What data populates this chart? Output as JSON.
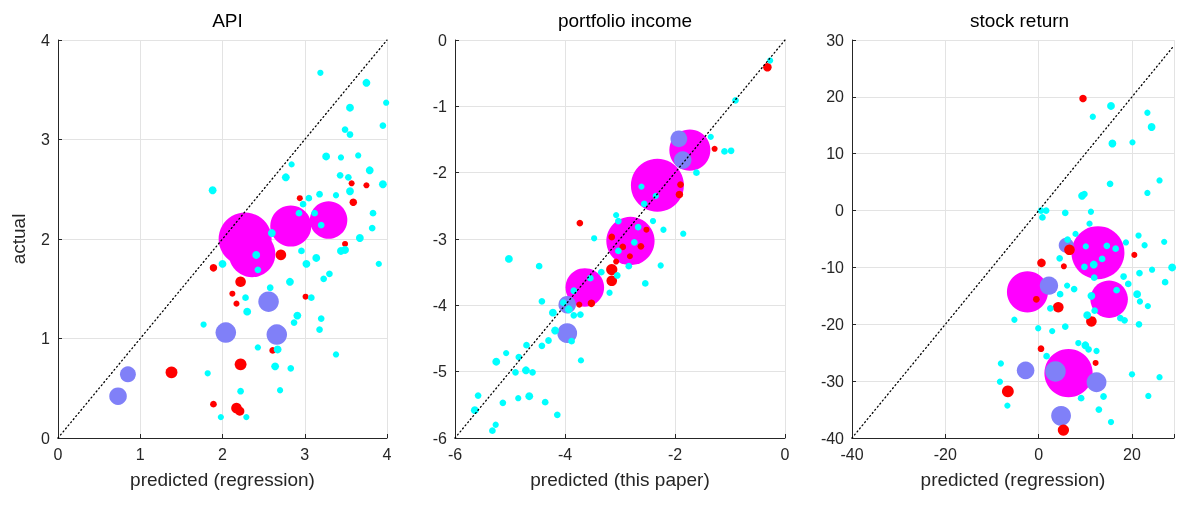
{
  "chart_data": [
    {
      "type": "bubble",
      "title": "API",
      "xlabel": "predicted (regression)",
      "ylabel": "actual",
      "xlim": [
        0,
        4
      ],
      "ylim": [
        0,
        4
      ],
      "xticks": [
        0,
        1,
        2,
        3,
        4
      ],
      "yticks": [
        0,
        1,
        2,
        3,
        4
      ],
      "grid": true,
      "series": [
        {
          "color": "#ff00ff",
          "x": [
            2.275,
            2.36,
            2.83,
            3.29
          ],
          "values": [
            2.0,
            1.85,
            2.13,
            2.19
          ],
          "sizes": [
            1,
            0.77,
            0.6,
            0.5
          ]
        },
        {
          "color": "#8080f8",
          "x": [
            2.56,
            2.04,
            2.66,
            0.85,
            0.73
          ],
          "values": [
            1.37,
            1.06,
            1.04,
            0.64,
            0.42
          ],
          "sizes": [
            0.15,
            0.15,
            0.15,
            0.09,
            0.11
          ]
        },
        {
          "color": "#ff0000",
          "x": [
            1.38,
            2.22,
            2.17,
            2.21,
            1.89,
            2.71,
            2.22,
            1.89,
            2.12,
            2.17,
            2.61,
            3.01,
            2.94,
            3.59,
            3.57,
            3.75,
            3.49
          ],
          "values": [
            0.66,
            0.74,
            0.3,
            0.27,
            0.34,
            1.84,
            1.57,
            1.71,
            1.45,
            1.35,
            0.88,
            1.42,
            2.41,
            2.37,
            2.56,
            2.54,
            1.95
          ],
          "sizes": [
            0.05,
            0.05,
            0.04,
            0.03,
            0.016,
            0.04,
            0.04,
            0.02,
            0.013,
            0.013,
            0.016,
            0.013,
            0.013,
            0.02,
            0.013,
            0.013,
            0.013
          ]
        },
        {
          "color": "#00ffff",
          "x": [
            3.19,
            3.75,
            3.55,
            3.99,
            3.95,
            3.49,
            3.55,
            3.26,
            3.44,
            3.65,
            2.84,
            3.79,
            2.77,
            3.43,
            3.53,
            3.95,
            1.88,
            3.18,
            3.55,
            3.05,
            2.98,
            3.38,
            2.93,
            3.12,
            3.83,
            3.82,
            3.2,
            2.6,
            3.67,
            2.96,
            3.44,
            3.49,
            2.41,
            2.0,
            3.14,
            3.02,
            2.43,
            3.9,
            3.23,
            3.3,
            2.82,
            2.58,
            2.28,
            3.08,
            2.3,
            2.91,
            2.87,
            3.2,
            3.18,
            1.77,
            2.43,
            2.67,
            3.38,
            2.64,
            2.83,
            1.82,
            2.22,
            2.7,
            1.98,
            2.29
          ],
          "values": [
            3.67,
            3.57,
            3.32,
            3.37,
            3.14,
            3.1,
            3.05,
            2.83,
            2.82,
            2.84,
            2.75,
            2.69,
            2.62,
            2.64,
            2.62,
            2.55,
            2.49,
            2.45,
            2.48,
            2.41,
            2.35,
            2.44,
            2.26,
            2.26,
            2.26,
            2.11,
            2.14,
            2.06,
            2.01,
            1.88,
            1.88,
            1.89,
            1.84,
            1.75,
            1.81,
            1.75,
            1.69,
            1.75,
            1.6,
            1.65,
            1.57,
            1.51,
            1.41,
            1.41,
            1.27,
            1.23,
            1.16,
            1.2,
            1.09,
            1.14,
            0.91,
            0.89,
            0.84,
            0.72,
            0.7,
            0.65,
            0.47,
            0.48,
            0.21,
            0.21
          ],
          "sizes": [
            0.014,
            0.022,
            0.022,
            0.014,
            0.016,
            0.016,
            0.016,
            0.022,
            0.014,
            0.014,
            0.014,
            0.022,
            0.022,
            0.016,
            0.016,
            0.022,
            0.022,
            0.016,
            0.022,
            0.016,
            0.016,
            0.014,
            0.016,
            0.016,
            0.016,
            0.016,
            0.016,
            0.022,
            0.022,
            0.016,
            0.022,
            0.022,
            0.022,
            0.022,
            0.022,
            0.022,
            0.016,
            0.014,
            0.016,
            0.016,
            0.022,
            0.016,
            0.016,
            0.016,
            0.022,
            0.022,
            0.016,
            0.016,
            0.016,
            0.014,
            0.014,
            0.022,
            0.014,
            0.022,
            0.016,
            0.014,
            0.016,
            0.014,
            0.014,
            0.014
          ]
        },
        {
          "type": "line",
          "color": "#000000",
          "line_style": "dotted",
          "marker": "none",
          "x": [
            0,
            4
          ],
          "values": [
            0,
            4
          ]
        }
      ]
    },
    {
      "type": "bubble",
      "title": "portfolio income",
      "xlabel": "predicted (this paper)",
      "xlim": [
        -6,
        0
      ],
      "ylim": [
        -6,
        0
      ],
      "xticks": [
        -6,
        -4,
        -2,
        0
      ],
      "yticks": [
        -6,
        -5,
        -4,
        -3,
        -2,
        -1,
        0
      ],
      "grid": true,
      "series": [
        {
          "color": "#ff00ff",
          "x": [
            -2.32,
            -1.73,
            -2.81,
            -3.64
          ],
          "values": [
            -2.19,
            -1.66,
            -3.03,
            -3.73
          ],
          "sizes": [
            1,
            0.6,
            0.83,
            0.53
          ]
        },
        {
          "color": "#8080f8",
          "x": [
            -1.93,
            -1.86,
            -3.96,
            -3.96
          ],
          "values": [
            -1.49,
            -1.81,
            -4.42,
            -3.99
          ],
          "sizes": [
            0.1,
            0.11,
            0.14,
            0.11
          ]
        },
        {
          "color": "#ff0000",
          "x": [
            -0.32,
            -1.28,
            -1.9,
            -1.92,
            -3.73,
            -2.52,
            -3.15,
            -2.62,
            -2.95,
            -2.82,
            -3.07,
            -3.15,
            -3.15,
            -3.52,
            -3.74
          ],
          "values": [
            -0.41,
            -1.64,
            -2.18,
            -2.33,
            -2.76,
            -2.86,
            -2.97,
            -3.11,
            -3.12,
            -3.26,
            -3.34,
            -3.46,
            -3.63,
            -3.97,
            -3.99
          ],
          "sizes": [
            0.026,
            0.013,
            0.016,
            0.02,
            0.016,
            0.013,
            0.016,
            0.016,
            0.016,
            0.013,
            0.013,
            0.045,
            0.04,
            0.02,
            0.013
          ]
        },
        {
          "color": "#00ffff",
          "x": [
            -0.27,
            -0.9,
            -1.35,
            -1.1,
            -0.98,
            -1.61,
            -2.61,
            -2.35,
            -2.56,
            -3.07,
            -3.03,
            -2.4,
            -2.21,
            -1.85,
            -2.67,
            -2.74,
            -3.47,
            -3.03,
            -2.84,
            -2.26,
            -5.02,
            -4.47,
            -3.34,
            -3.54,
            -3.05,
            -2.54,
            -3.84,
            -3.19,
            -4.42,
            -4.03,
            -3.72,
            -4.22,
            -3.93,
            -3.84,
            -4.18,
            -3.88,
            -4.3,
            -3.71,
            -4.7,
            -4.42,
            -5.25,
            -4.84,
            -4.9,
            -4.71,
            -4.59,
            -5.07,
            -5.58,
            -4.65,
            -5.13,
            -4.36,
            -5.64,
            -5.26,
            -5.32,
            -4.14,
            -4.85
          ],
          "values": [
            -0.31,
            -0.91,
            -1.46,
            -1.68,
            -1.67,
            -2.0,
            -2.21,
            -2.35,
            -2.47,
            -2.64,
            -2.73,
            -2.73,
            -2.86,
            -2.92,
            -2.82,
            -3.05,
            -2.99,
            -3.18,
            -3.41,
            -3.4,
            -3.3,
            -3.41,
            -3.5,
            -3.59,
            -3.55,
            -3.67,
            -3.78,
            -3.81,
            -3.94,
            -3.96,
            -4.14,
            -4.11,
            -4.06,
            -4.15,
            -4.38,
            -4.54,
            -4.53,
            -4.83,
            -4.6,
            -4.61,
            -4.85,
            -4.78,
            -5.01,
            -4.98,
            -5.01,
            -4.72,
            -5.36,
            -5.37,
            -5.47,
            -5.46,
            -5.58,
            -5.8,
            -5.89,
            -5.65,
            -5.4
          ],
          "sizes": [
            0.014,
            0.016,
            0.014,
            0.016,
            0.016,
            0.016,
            0.014,
            0.014,
            0.016,
            0.014,
            0.016,
            0.014,
            0.014,
            0.014,
            0.016,
            0.016,
            0.014,
            0.016,
            0.016,
            0.014,
            0.022,
            0.016,
            0.016,
            0.016,
            0.016,
            0.016,
            0.016,
            0.014,
            0.016,
            0.016,
            0.016,
            0.022,
            0.022,
            0.016,
            0.022,
            0.016,
            0.016,
            0.014,
            0.016,
            0.016,
            0.022,
            0.016,
            0.016,
            0.022,
            0.016,
            0.014,
            0.016,
            0.022,
            0.016,
            0.016,
            0.022,
            0.014,
            0.016,
            0.016,
            0.014
          ]
        },
        {
          "type": "line",
          "color": "#000000",
          "line_style": "dotted",
          "marker": "none",
          "x": [
            -6,
            0
          ],
          "values": [
            -6,
            0
          ]
        }
      ]
    },
    {
      "type": "bubble",
      "title": "stock return",
      "xlabel": "predicted (regression)",
      "xlim": [
        -40,
        29
      ],
      "ylim": [
        -40,
        30
      ],
      "xticks": [
        -40,
        -20,
        0,
        20
      ],
      "yticks": [
        -40,
        -30,
        -20,
        -10,
        0,
        10,
        20,
        30
      ],
      "grid": true,
      "series": [
        {
          "color": "#ff00ff",
          "x": [
            12.7,
            -2.4,
            15.1,
            6.4
          ],
          "values": [
            -7.4,
            -14.3,
            -15.6,
            -28.6
          ],
          "sizes": [
            1,
            0.6,
            0.5,
            0.83
          ]
        },
        {
          "color": "#8080f8",
          "x": [
            5.9,
            2.2,
            -2.8,
            3.6,
            12.4,
            4.8
          ],
          "values": [
            -6.1,
            -13.2,
            -28.1,
            -28.3,
            -30.2,
            -36.1
          ],
          "sizes": [
            0.08,
            0.12,
            0.11,
            0.15,
            0.14,
            0.14
          ]
        },
        {
          "color": "#ff0000",
          "x": [
            9.5,
            6.6,
            0.6,
            5.4,
            20.5,
            -0.5,
            4.2,
            11.3,
            0.5,
            12.2,
            -6.6,
            5.3
          ],
          "values": [
            19.7,
            -6.9,
            -9.2,
            -9.8,
            -7.8,
            -15.6,
            -17.0,
            -19.5,
            -24.3,
            -26.8,
            -31.8,
            -38.6
          ],
          "sizes": [
            0.02,
            0.04,
            0.026,
            0.013,
            0.013,
            0.016,
            0.04,
            0.04,
            0.016,
            0.013,
            0.05,
            0.045
          ]
        },
        {
          "color": "#00ffff",
          "x": [
            15.5,
            24.2,
            23.3,
            15.8,
            11.6,
            20.1,
            25.9,
            15.3,
            9.3,
            9.8,
            23.3,
            0.5,
            1.6,
            0.8,
            5.7,
            11.2,
            10.9,
            7.9,
            6.2,
            14.6,
            16.5,
            10.1,
            18.7,
            21.4,
            26.9,
            28.6,
            22.7,
            4.5,
            13.6,
            11.8,
            9.8,
            11.9,
            21.6,
            24.3,
            18.2,
            19.2,
            27.1,
            6.1,
            7.6,
            4.6,
            11.3,
            16.7,
            21.1,
            21.7,
            23.4,
            2.5,
            12.0,
            10.4,
            17.5,
            18.4,
            21.5,
            5.7,
            -5.2,
            -0.1,
            2.9,
            8.5,
            10.0,
            10.7,
            12.4,
            1.7,
            -8.1,
            -8.3,
            -6.7,
            20.0,
            25.9,
            9.1,
            13.9,
            23.5,
            12.9,
            15.5
          ],
          "values": [
            18.4,
            14.7,
            17.2,
            11.8,
            16.5,
            12.0,
            5.3,
            4.7,
            2.6,
            2.9,
            3.1,
            0.0,
            0.0,
            -1.2,
            -0.4,
            -0.2,
            -2.3,
            -4.1,
            -5.1,
            -6.2,
            -6.7,
            -6.3,
            -5.6,
            -4.4,
            -5.5,
            -10.0,
            -6.1,
            -8.4,
            -8.5,
            -9.5,
            -9.9,
            -11.8,
            -11.0,
            -10.4,
            -11.6,
            -12.9,
            -12.6,
            -13.2,
            -13.8,
            -14.7,
            -15.0,
            -14.0,
            -14.7,
            -16.0,
            -16.8,
            -17.2,
            -17.6,
            -18.4,
            -18.9,
            -19.3,
            -20.0,
            -20.4,
            -19.2,
            -20.7,
            -21.2,
            -23.3,
            -23.7,
            -24.4,
            -24.7,
            -25.6,
            -26.9,
            -30.1,
            -34.3,
            -28.8,
            -29.3,
            -33.0,
            -32.7,
            -32.6,
            -35.0,
            -37.2
          ],
          "sizes": [
            0.022,
            0.022,
            0.014,
            0.022,
            0.014,
            0.014,
            0.014,
            0.016,
            0.022,
            0.016,
            0.014,
            0.016,
            0.016,
            0.016,
            0.016,
            0.014,
            0.014,
            0.014,
            0.016,
            0.016,
            0.016,
            0.014,
            0.014,
            0.014,
            0.014,
            0.022,
            0.014,
            0.016,
            0.016,
            0.022,
            0.016,
            0.016,
            0.016,
            0.014,
            0.016,
            0.016,
            0.016,
            0.014,
            0.016,
            0.016,
            0.022,
            0.016,
            0.022,
            0.014,
            0.014,
            0.016,
            0.016,
            0.022,
            0.016,
            0.016,
            0.016,
            0.016,
            0.014,
            0.014,
            0.014,
            0.014,
            0.022,
            0.016,
            0.014,
            0.016,
            0.014,
            0.014,
            0.014,
            0.014,
            0.014,
            0.016,
            0.016,
            0.014,
            0.016,
            0.014
          ]
        },
        {
          "type": "line",
          "color": "#000000",
          "line_style": "dotted",
          "marker": "none",
          "x": [
            -40,
            29
          ],
          "values": [
            -40,
            29
          ]
        }
      ]
    }
  ]
}
